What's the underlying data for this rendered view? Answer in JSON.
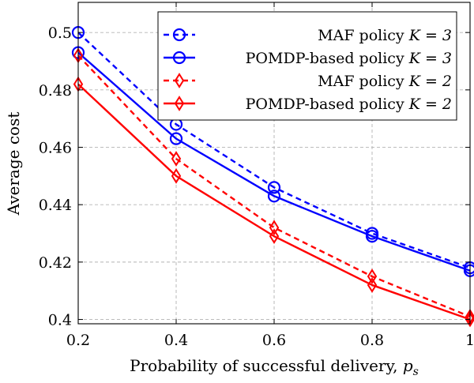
{
  "chart_data": {
    "type": "line",
    "title": "",
    "xlabel": "Probability of successful delivery, ",
    "xlabel_symbol": "p",
    "xlabel_subscript": "s",
    "ylabel": "Average cost",
    "x": [
      0.2,
      0.4,
      0.6,
      0.8,
      1
    ],
    "xlim": [
      0.2,
      1
    ],
    "ylim": [
      0.3985,
      0.5105
    ],
    "xticks": [
      "0.2",
      "0.4",
      "0.6",
      "0.8",
      "1"
    ],
    "yticks": [
      "0.4",
      "0.42",
      "0.44",
      "0.46",
      "0.48",
      "0.5"
    ],
    "grid": true,
    "legend_position": "top-right",
    "series": [
      {
        "name": "MAF policy",
        "k_label": "K = 3",
        "color": "#0000ff",
        "line": "dashed",
        "marker": "circle",
        "values": [
          0.5,
          0.468,
          0.446,
          0.43,
          0.418
        ]
      },
      {
        "name": "POMDP-based policy",
        "k_label": "K = 3",
        "color": "#0000ff",
        "line": "solid",
        "marker": "circle",
        "values": [
          0.493,
          0.463,
          0.443,
          0.429,
          0.417
        ]
      },
      {
        "name": "MAF policy",
        "k_label": "K = 2",
        "color": "#ff0000",
        "line": "dashed",
        "marker": "diamond",
        "values": [
          0.492,
          0.456,
          0.432,
          0.415,
          0.401
        ]
      },
      {
        "name": "POMDP-based policy",
        "k_label": "K = 2",
        "color": "#ff0000",
        "line": "solid",
        "marker": "diamond",
        "values": [
          0.482,
          0.45,
          0.429,
          0.412,
          0.4
        ]
      }
    ]
  }
}
